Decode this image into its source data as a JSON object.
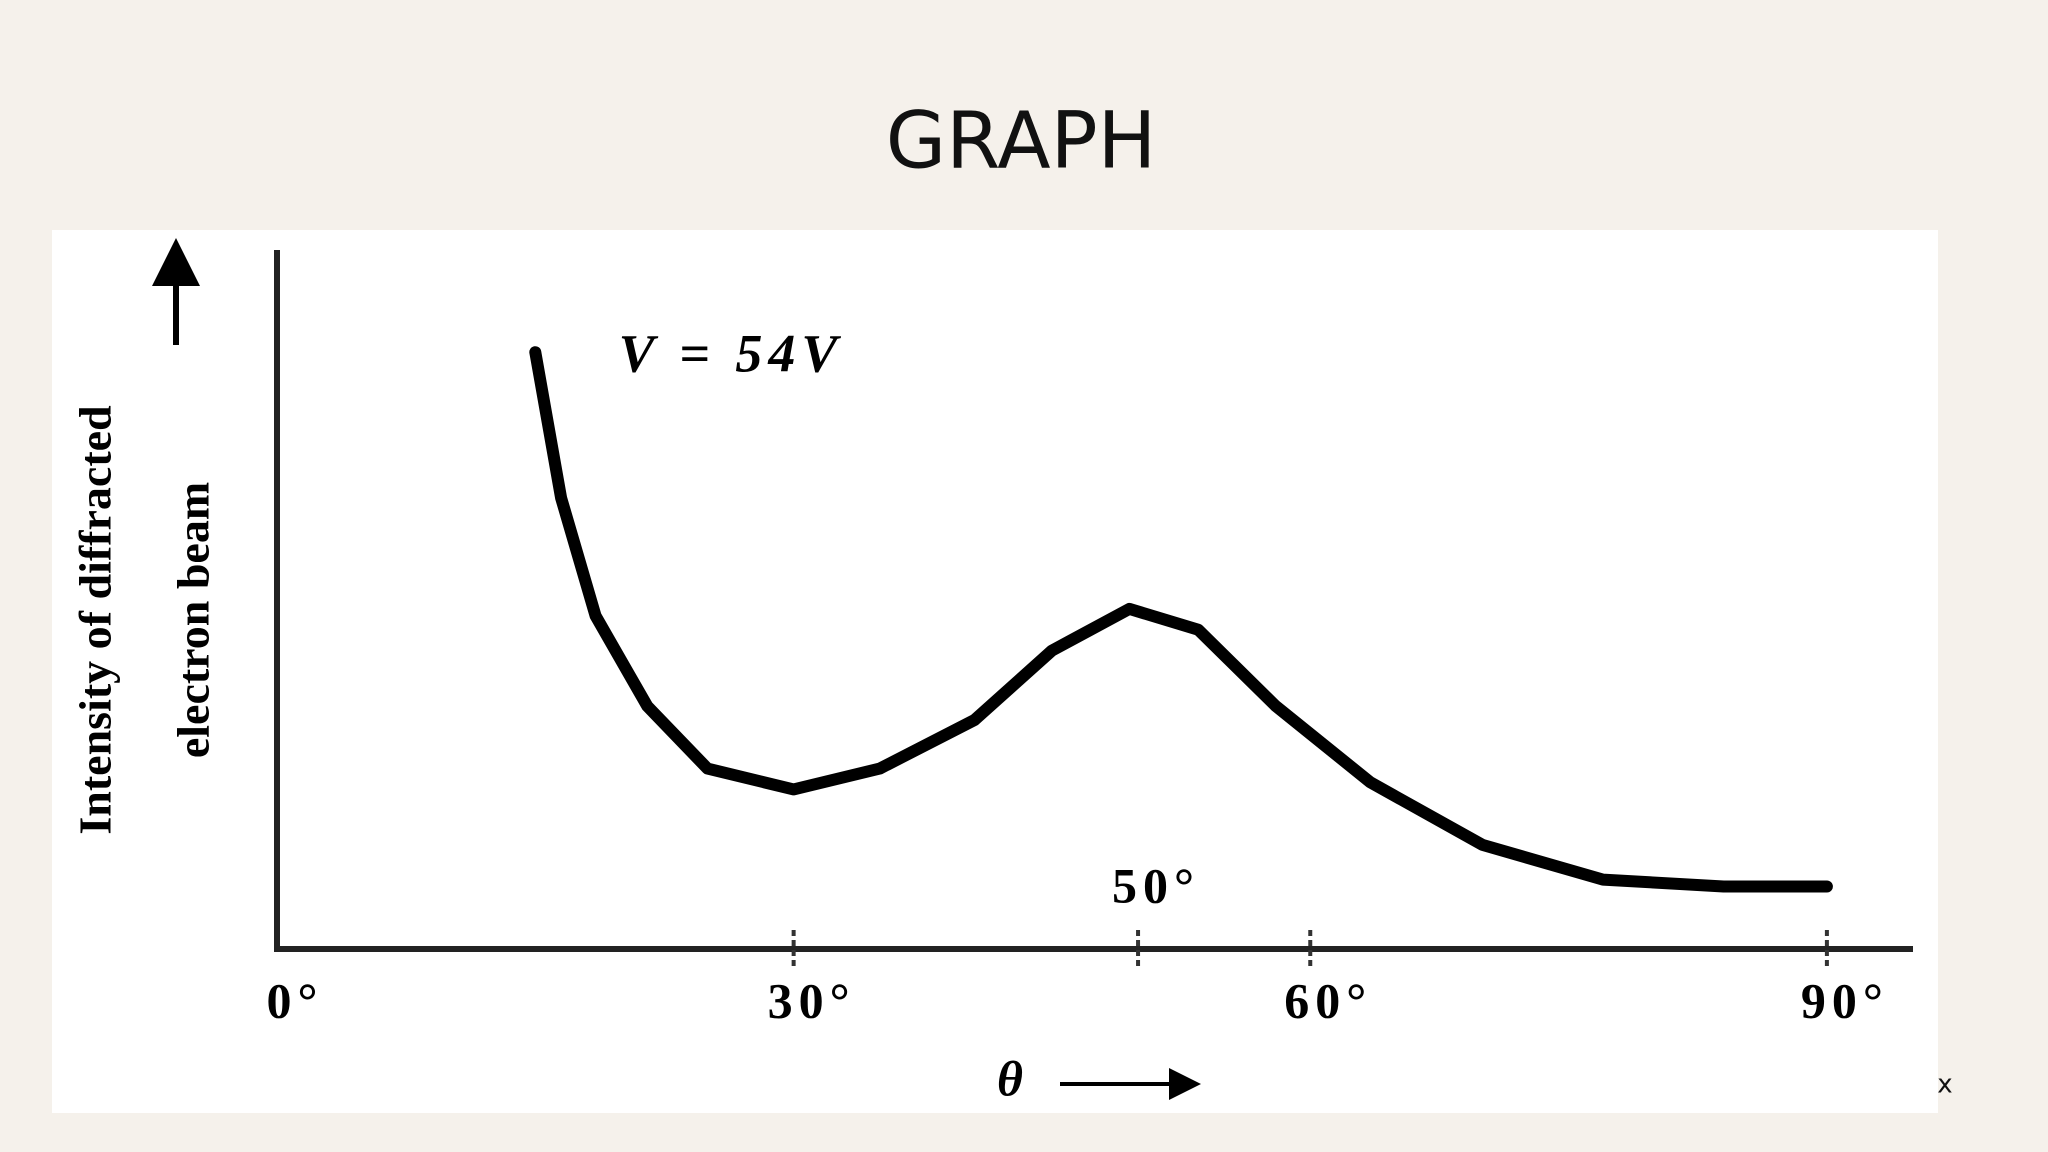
{
  "chart_data": {
    "type": "line",
    "title": "GRAPH",
    "y_label_lines": [
      "Intensity of diffracted",
      "electron beam"
    ],
    "x_label": "θ",
    "xlim": [
      0,
      95
    ],
    "ylim": [
      0,
      100
    ],
    "xticks": [
      {
        "value": 0,
        "label": "0°"
      },
      {
        "value": 30,
        "label": "30°"
      },
      {
        "value": 60,
        "label": "60°"
      },
      {
        "value": 90,
        "label": "90°"
      }
    ],
    "grid": false,
    "annotations": [
      {
        "text": "V = 54V"
      },
      {
        "text": "50°",
        "x": 50
      }
    ],
    "series": [
      {
        "color": "#000000",
        "x": [
          15,
          16.5,
          18.5,
          21.5,
          25,
          30,
          35,
          40.5,
          45,
          49.5,
          53.5,
          58,
          63.5,
          70,
          77,
          84,
          90
        ],
        "values": [
          86,
          65,
          48,
          35,
          26,
          23,
          26,
          33,
          43,
          49,
          46,
          35,
          24,
          15,
          10,
          9,
          9
        ]
      }
    ],
    "corner_text": "x"
  }
}
